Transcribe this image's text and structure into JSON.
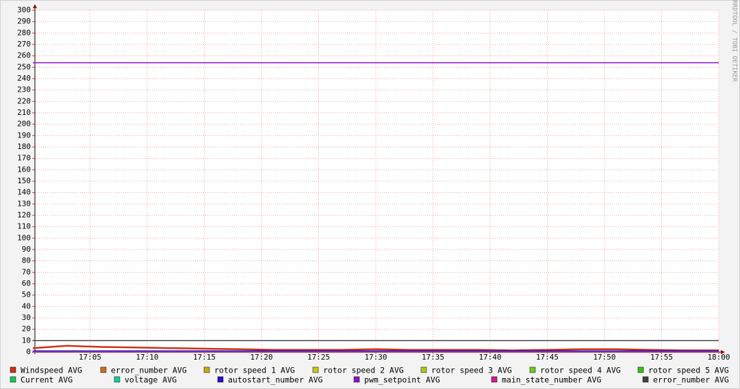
{
  "chart_data": {
    "type": "line",
    "watermark": "RRDTOOL / TOBI OETIKER",
    "x": [
      0,
      3,
      6,
      9,
      12,
      15,
      18,
      21,
      24,
      27,
      30,
      33,
      36,
      39,
      42,
      45,
      48,
      51,
      54,
      57,
      60
    ],
    "xlim": [
      0,
      60
    ],
    "xticks": [
      {
        "value": 5,
        "label": "17:05"
      },
      {
        "value": 10,
        "label": "17:10"
      },
      {
        "value": 15,
        "label": "17:15"
      },
      {
        "value": 20,
        "label": "17:20"
      },
      {
        "value": 25,
        "label": "17:25"
      },
      {
        "value": 30,
        "label": "17:30"
      },
      {
        "value": 35,
        "label": "17:35"
      },
      {
        "value": 40,
        "label": "17:40"
      },
      {
        "value": 45,
        "label": "17:45"
      },
      {
        "value": 50,
        "label": "17:50"
      },
      {
        "value": 55,
        "label": "17:55"
      },
      {
        "value": 60,
        "label": "18:00"
      }
    ],
    "ylim": [
      0,
      300
    ],
    "yticks": [
      0,
      10,
      20,
      30,
      40,
      50,
      60,
      70,
      80,
      90,
      100,
      110,
      120,
      130,
      140,
      150,
      160,
      170,
      180,
      190,
      200,
      210,
      220,
      230,
      240,
      250,
      260,
      270,
      280,
      290,
      300
    ],
    "grid": true,
    "series": [
      {
        "name": "Windspeed AVG",
        "color": "#cc3118",
        "values": [
          3.5,
          5.5,
          4.5,
          4,
          3.5,
          3,
          2.5,
          2,
          2,
          2,
          2.5,
          2,
          2,
          2,
          1.5,
          2,
          2.5,
          2.5,
          2,
          1.5,
          1.5
        ]
      },
      {
        "name": "error_number AVG",
        "color": "#cc7016",
        "values": [
          0,
          0,
          0,
          0,
          0,
          0,
          0,
          0,
          0,
          0,
          0,
          0,
          0,
          0,
          0,
          0,
          0,
          0,
          0,
          0,
          0
        ]
      },
      {
        "name": "rotor speed 1 AVG",
        "color": "#c9a616",
        "values": [
          0,
          0,
          0,
          0,
          0,
          0,
          0,
          0,
          0,
          0,
          0,
          0,
          0,
          0,
          0,
          0,
          0,
          0,
          0,
          0,
          0
        ]
      },
      {
        "name": "rotor speed 2 AVG",
        "color": "#c9c716",
        "values": [
          0,
          0,
          0,
          0,
          0,
          0,
          0,
          0,
          0,
          0,
          0,
          0,
          0,
          0,
          0,
          0,
          0,
          0,
          0,
          0,
          0
        ]
      },
      {
        "name": "rotor speed 3 AVG",
        "color": "#a6cc18",
        "values": [
          0,
          0,
          0,
          0,
          0,
          0,
          0,
          0,
          0,
          0,
          0,
          0,
          0,
          0,
          0,
          0,
          0,
          0,
          0,
          0,
          0
        ]
      },
      {
        "name": "rotor speed 4 AVG",
        "color": "#6ccc18",
        "values": [
          0,
          0,
          0,
          0,
          0,
          0,
          0,
          0,
          0,
          0,
          0,
          0,
          0,
          0,
          0,
          0,
          0,
          0,
          0,
          0,
          0
        ]
      },
      {
        "name": "rotor speed 5 AVG",
        "color": "#34c216",
        "values": [
          0,
          0,
          0,
          0,
          0,
          0,
          0,
          0,
          0,
          0,
          0,
          0,
          0,
          0,
          0,
          0,
          0,
          0,
          0,
          0,
          0
        ]
      },
      {
        "name": "Current AVG",
        "color": "#18c45a",
        "values": [
          0,
          0,
          0,
          0,
          0,
          0,
          0,
          0,
          0,
          0,
          0,
          0,
          0,
          0,
          0,
          0,
          0,
          0,
          0,
          0,
          0
        ]
      },
      {
        "name": "voltage AVG",
        "color": "#1ccba0",
        "values": [
          0,
          0,
          0,
          0,
          0,
          0,
          0,
          0,
          0,
          0,
          0,
          0,
          0,
          0,
          0,
          0,
          0,
          0,
          0,
          0,
          0
        ]
      },
      {
        "name": "autostart_number AVG",
        "color": "#2b10cc",
        "values": [
          1,
          1,
          1,
          1,
          1,
          1,
          1,
          1,
          1,
          1,
          1,
          1,
          1,
          1,
          1,
          1,
          1,
          1,
          1,
          1,
          1
        ]
      },
      {
        "name": "pwm_setpoint AVG",
        "color": "#9012cc",
        "values": [
          254,
          254,
          254,
          254,
          254,
          254,
          254,
          254,
          254,
          254,
          254,
          254,
          254,
          254,
          254,
          254,
          254,
          254,
          254,
          254,
          254
        ]
      },
      {
        "name": "main_state_number AVG",
        "color": "#d01c8a",
        "values": [
          0,
          0,
          0,
          0,
          0,
          0,
          0,
          0,
          0,
          0,
          0,
          0,
          0,
          0,
          0,
          0,
          0,
          0,
          0,
          0,
          0
        ]
      },
      {
        "name": "error_number AVG",
        "color": "#444444",
        "values": [
          10,
          10,
          10,
          10,
          10,
          10,
          10,
          10,
          10,
          10,
          10,
          10,
          10,
          10,
          10,
          10,
          10,
          10,
          10,
          10,
          10
        ]
      }
    ]
  }
}
